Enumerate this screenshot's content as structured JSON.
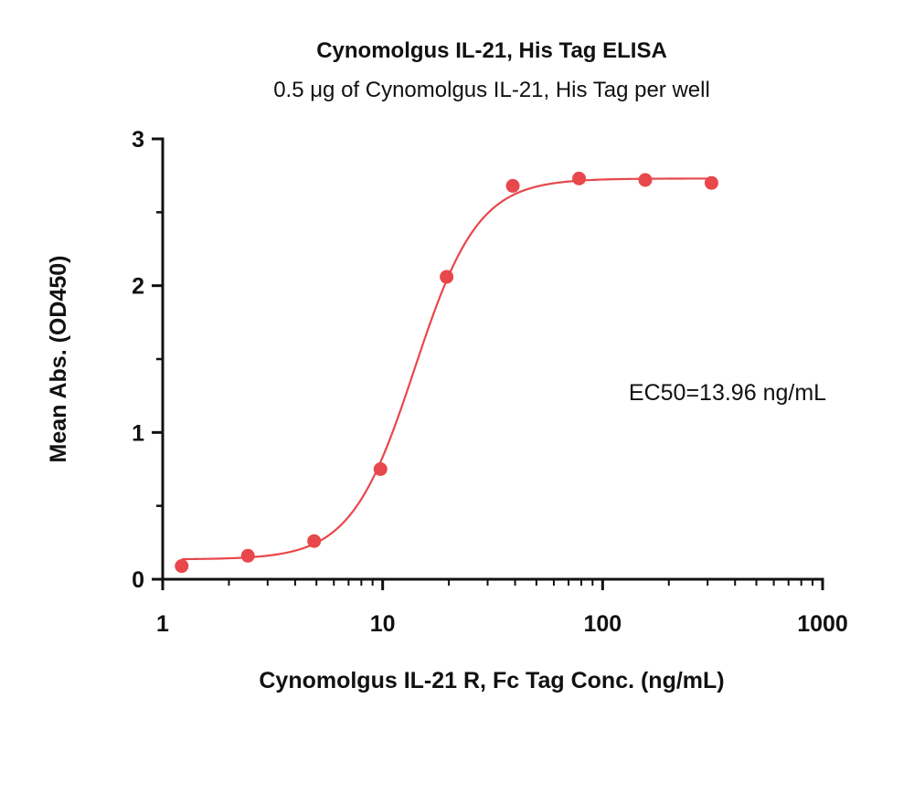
{
  "chart_data": {
    "type": "scatter",
    "title": "Cynomolgus IL-21, His Tag ELISA",
    "subtitle": "0.5 μg of Cynomolgus IL-21, His Tag per well",
    "xlabel": "Cynomolgus IL-21 R, Fc Tag Conc. (ng/mL)",
    "ylabel": "Mean Abs. (OD450)",
    "xscale": "log",
    "xlim": [
      1,
      1000
    ],
    "ylim": [
      0,
      3
    ],
    "xticks": [
      1,
      10,
      100,
      1000
    ],
    "xtick_labels": [
      "1",
      "10",
      "100",
      "1000"
    ],
    "yticks": [
      0,
      1,
      2,
      3
    ],
    "ytick_labels": [
      "0",
      "1",
      "2",
      "3"
    ],
    "grid": false,
    "color": "#e8474b",
    "annotation": "EC50=13.96 ng/mL",
    "series": [
      {
        "x": [
          1.22,
          2.44,
          4.88,
          9.77,
          19.53,
          39.06,
          78.13,
          156.25,
          312.5
        ],
        "y": [
          0.09,
          0.16,
          0.26,
          0.75,
          2.06,
          2.68,
          2.73,
          2.72,
          2.7
        ]
      }
    ],
    "fit_curve": {
      "model": "4PL",
      "bottom": 0.135,
      "top": 2.73,
      "ec50": 13.96,
      "hill": 3.0
    }
  }
}
